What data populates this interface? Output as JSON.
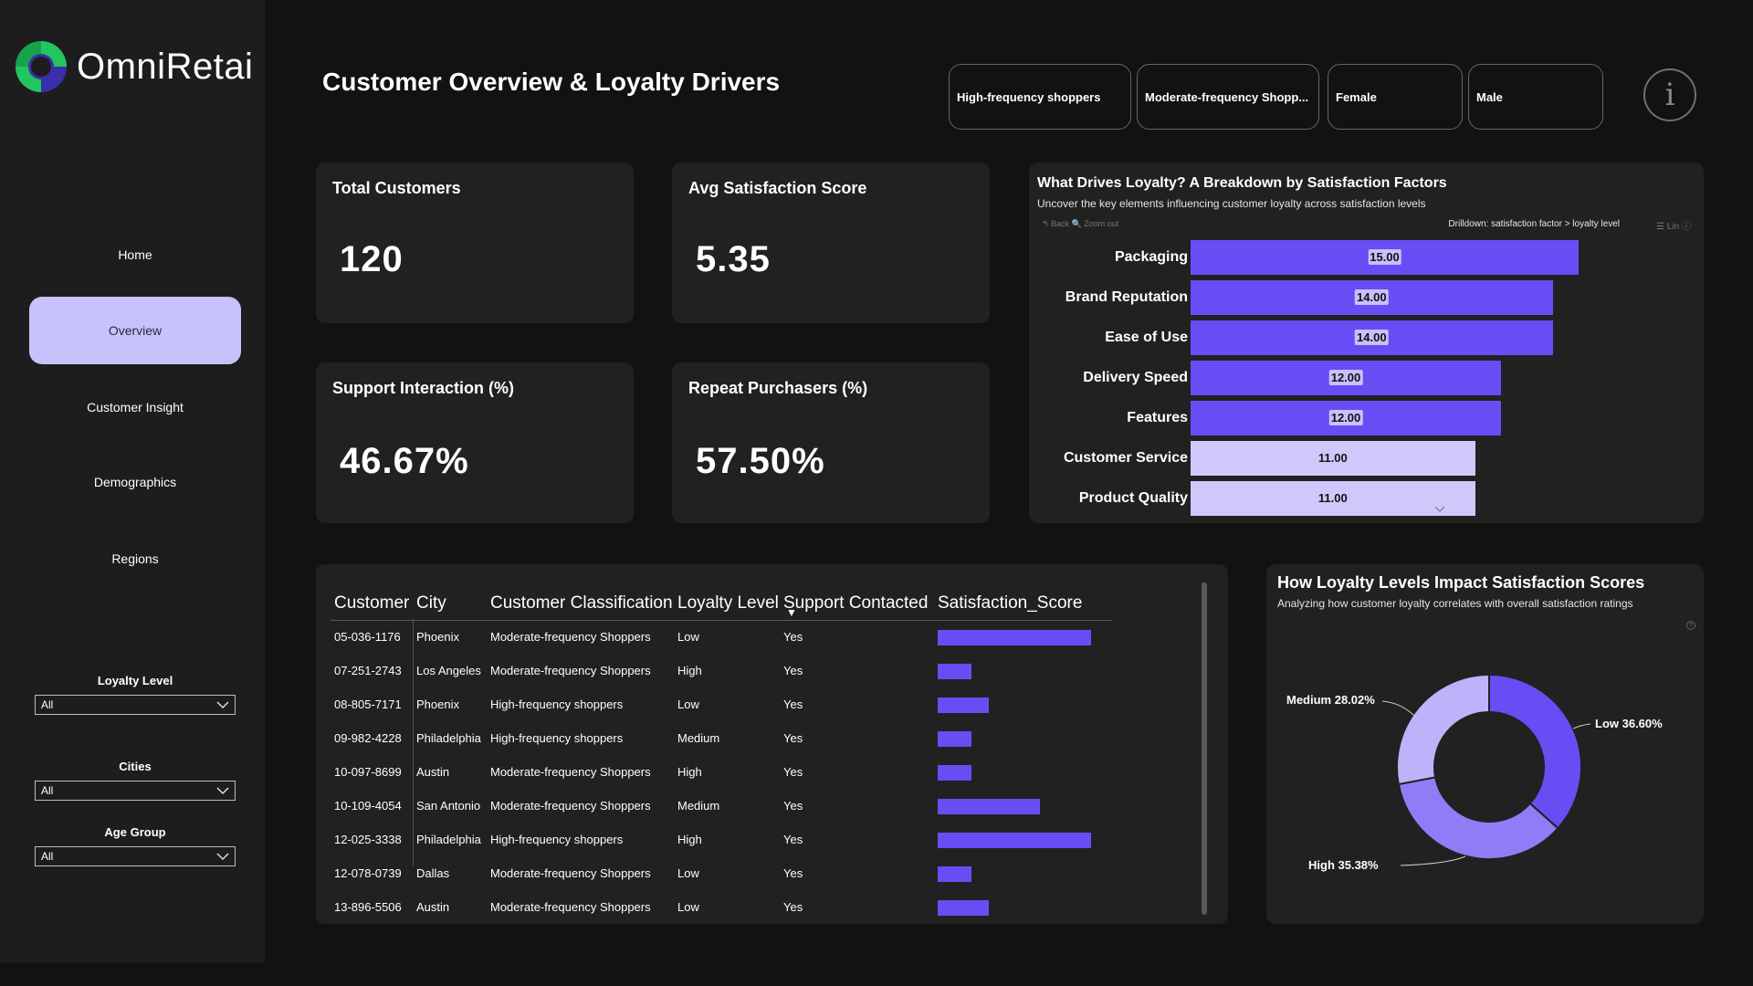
{
  "app": {
    "name": "OmniRetai"
  },
  "page": {
    "title": "Customer Overview & Loyalty Drivers"
  },
  "nav": {
    "items": [
      {
        "label": "Home",
        "active": false
      },
      {
        "label": "Overview",
        "active": true
      },
      {
        "label": "Customer Insight",
        "active": false
      },
      {
        "label": "Demographics",
        "active": false
      },
      {
        "label": "Regions",
        "active": false
      }
    ]
  },
  "filters": {
    "loyalty": {
      "label": "Loyalty Level",
      "value": "All"
    },
    "cities": {
      "label": "Cities",
      "value": "All"
    },
    "age": {
      "label": "Age Group",
      "value": "All"
    }
  },
  "chips": [
    "High-frequency shoppers",
    "Moderate-frequency Shopp...",
    "Female",
    "Male"
  ],
  "info_icon": "i",
  "kpis": {
    "total_customers": {
      "title": "Total Customers",
      "value": "120"
    },
    "avg_satisfaction": {
      "title": "Avg Satisfaction Score",
      "value": "5.35"
    },
    "support_interaction": {
      "title": "Support Interaction (%)",
      "value": "46.67%"
    },
    "repeat_purchasers": {
      "title": "Repeat Purchasers (%)",
      "value": "57.50%"
    }
  },
  "bar_chart": {
    "title": "What Drives Loyalty? A Breakdown by Satisfaction Factors",
    "subtitle": "Uncover the key elements influencing customer loyalty across satisfaction levels",
    "tools": "↰ Back   🔍 Zoom out",
    "drilldown": "Drilldown: satisfaction factor  > loyalty level",
    "icons": "☰ Lin  ⓘ"
  },
  "chart_data": [
    {
      "type": "bar",
      "orientation": "horizontal",
      "title": "What Drives Loyalty? A Breakdown by Satisfaction Factors",
      "categories": [
        "Packaging",
        "Brand Reputation",
        "Ease of Use",
        "Delivery Speed",
        "Features",
        "Customer Service",
        "Product Quality"
      ],
      "values": [
        15.0,
        14.0,
        14.0,
        12.0,
        12.0,
        11.0,
        11.0
      ],
      "value_labels": [
        "15.00",
        "14.00",
        "14.00",
        "12.00",
        "12.00",
        "11.00",
        "11.00"
      ],
      "colors": [
        "#6a4cf5",
        "#6a4cf5",
        "#6a4cf5",
        "#6a4cf5",
        "#6a4cf5",
        "#cfc8fb",
        "#cfc8fb"
      ],
      "xlim": [
        0,
        18
      ]
    },
    {
      "type": "pie",
      "donut": true,
      "title": "How Loyalty Levels Impact Satisfaction Scores",
      "subtitle": "Analyzing how customer loyalty correlates with overall satisfaction ratings",
      "categories": [
        "Low",
        "High",
        "Medium"
      ],
      "values": [
        36.6,
        35.38,
        28.02
      ],
      "labels": [
        "Low 36.60%",
        "High 35.38%",
        "Medium 28.02%"
      ],
      "colors": [
        "#6a4cf5",
        "#8f7df7",
        "#bdb3fb"
      ]
    }
  ],
  "table": {
    "headers": [
      "Customer",
      "City",
      "Customer Classification",
      "Loyalty Level",
      "Support Contacted",
      "Satisfaction_Score"
    ],
    "rows": [
      {
        "customer": "05-036-1176",
        "city": "Phoenix",
        "classification": "Moderate-frequency Shoppers",
        "loyalty": "Low",
        "support": "Yes",
        "score": 9
      },
      {
        "customer": "07-251-2743",
        "city": "Los Angeles",
        "classification": "Moderate-frequency Shoppers",
        "loyalty": "High",
        "support": "Yes",
        "score": 2
      },
      {
        "customer": "08-805-7171",
        "city": "Phoenix",
        "classification": "High-frequency shoppers",
        "loyalty": "Low",
        "support": "Yes",
        "score": 3
      },
      {
        "customer": "09-982-4228",
        "city": "Philadelphia",
        "classification": "High-frequency shoppers",
        "loyalty": "Medium",
        "support": "Yes",
        "score": 2
      },
      {
        "customer": "10-097-8699",
        "city": "Austin",
        "classification": "Moderate-frequency Shoppers",
        "loyalty": "High",
        "support": "Yes",
        "score": 2
      },
      {
        "customer": "10-109-4054",
        "city": "San Antonio",
        "classification": "Moderate-frequency Shoppers",
        "loyalty": "Medium",
        "support": "Yes",
        "score": 6
      },
      {
        "customer": "12-025-3338",
        "city": "Philadelphia",
        "classification": "High-frequency shoppers",
        "loyalty": "High",
        "support": "Yes",
        "score": 9
      },
      {
        "customer": "12-078-0739",
        "city": "Dallas",
        "classification": "Moderate-frequency Shoppers",
        "loyalty": "Low",
        "support": "Yes",
        "score": 2
      },
      {
        "customer": "13-896-5506",
        "city": "Austin",
        "classification": "Moderate-frequency Shoppers",
        "loyalty": "Low",
        "support": "Yes",
        "score": 3
      }
    ],
    "score_max": 10
  },
  "colors": {
    "accent": "#6a4cf5",
    "accent_light": "#cfc8fb",
    "nav_active": "#c8c2fb",
    "card": "#212121",
    "background": "#121212"
  }
}
